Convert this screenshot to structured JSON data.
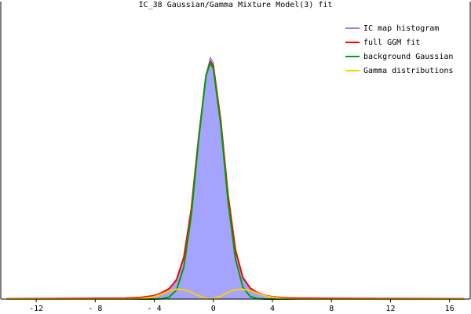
{
  "chart_data": {
    "type": "line",
    "title": "IC_38 Gaussian/Gamma Mixture Model(3) fit",
    "x": [
      -14,
      -10,
      -6,
      -5,
      -4,
      -3.5,
      -3,
      -2.5,
      -2,
      -1.5,
      -1,
      -0.5,
      -0.2,
      0,
      0.5,
      1,
      1.5,
      2,
      2.5,
      3,
      3.5,
      4,
      5,
      6,
      10,
      17
    ],
    "series": [
      {
        "name": "IC map histogram",
        "color": "#8080ff",
        "fill": "#a4a4ff",
        "values": [
          0.001,
          0.002,
          0.003,
          0.004,
          0.01,
          0.02,
          0.035,
          0.07,
          0.15,
          0.3,
          0.55,
          0.78,
          0.84,
          0.82,
          0.6,
          0.35,
          0.16,
          0.07,
          0.035,
          0.02,
          0.012,
          0.008,
          0.004,
          0.003,
          0.002,
          0.001
        ]
      },
      {
        "name": "full GGM fit",
        "color": "#ff0000",
        "values": [
          0.001,
          0.002,
          0.003,
          0.005,
          0.012,
          0.022,
          0.036,
          0.066,
          0.145,
          0.31,
          0.56,
          0.775,
          0.825,
          0.81,
          0.62,
          0.36,
          0.17,
          0.075,
          0.038,
          0.022,
          0.013,
          0.008,
          0.004,
          0.003,
          0.002,
          0.001
        ]
      },
      {
        "name": "background Gaussian",
        "color": "#00a000",
        "values": [
          0,
          0,
          0,
          0,
          0,
          0.001,
          0.0065,
          0.031,
          0.111,
          0.289,
          0.552,
          0.776,
          0.82,
          0.8,
          0.606,
          0.337,
          0.138,
          0.041,
          0.009,
          0.0015,
          0,
          0,
          0,
          0,
          0,
          0
        ]
      },
      {
        "name": "Gamma distributions",
        "color": "#ffcc00",
        "values": [
          0,
          0,
          0,
          0.001,
          0.008,
          0.018,
          0.028,
          0.034,
          0.033,
          0.024,
          0.012,
          0.002,
          0,
          0.001,
          0.01,
          0.024,
          0.033,
          0.034,
          0.029,
          0.02,
          0.012,
          0.006,
          0.001,
          0,
          0,
          0
        ]
      }
    ],
    "xlim": [
      -14.4,
      17.4
    ],
    "xticks": [
      -12,
      {
        "value": -8,
        "label": "- 8"
      },
      {
        "value": -4,
        "label": "- 4"
      },
      0,
      4,
      8,
      12,
      16
    ],
    "ylim": [
      0,
      1
    ],
    "legend": "upper right"
  }
}
